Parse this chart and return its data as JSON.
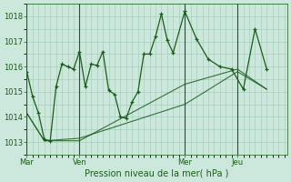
{
  "background_color": "#cce8dc",
  "plot_bg_color": "#cce8dc",
  "grid_color": "#a0c8b8",
  "line_color": "#1a5c1a",
  "title": "Pression niveau de la mer( hPa )",
  "ylim": [
    1012.5,
    1018.5
  ],
  "yticks": [
    1013,
    1014,
    1015,
    1016,
    1017,
    1018
  ],
  "day_labels": [
    "Mar",
    "Ven",
    "Mer",
    "Jeu"
  ],
  "day_positions": [
    0,
    18,
    54,
    72
  ],
  "total_points": 90,
  "series1_x": [
    0,
    2,
    4,
    6,
    8,
    10,
    12,
    14,
    16,
    18,
    20,
    22,
    24,
    26,
    28,
    30,
    32,
    34,
    36,
    38,
    40,
    42,
    44,
    46,
    48,
    50,
    54,
    58,
    62,
    66,
    70,
    74,
    78,
    82
  ],
  "series1_y": [
    1015.8,
    1014.8,
    1014.15,
    1013.1,
    1013.05,
    1015.2,
    1016.1,
    1016.0,
    1015.9,
    1016.6,
    1015.2,
    1016.1,
    1016.05,
    1016.6,
    1015.05,
    1014.9,
    1014.0,
    1013.95,
    1014.6,
    1015.0,
    1016.5,
    1016.5,
    1017.2,
    1018.1,
    1017.05,
    1016.55,
    1018.2,
    1017.1,
    1016.3,
    1016.0,
    1015.9,
    1015.1,
    1017.5,
    1015.9
  ],
  "series2_x": [
    0,
    6,
    18,
    54,
    72,
    82
  ],
  "series2_y": [
    1014.15,
    1013.05,
    1013.05,
    1015.3,
    1015.9,
    1015.1
  ],
  "series3_x": [
    0,
    6,
    18,
    54,
    72,
    82
  ],
  "series3_y": [
    1014.15,
    1013.05,
    1013.15,
    1014.5,
    1015.8,
    1015.1
  ]
}
